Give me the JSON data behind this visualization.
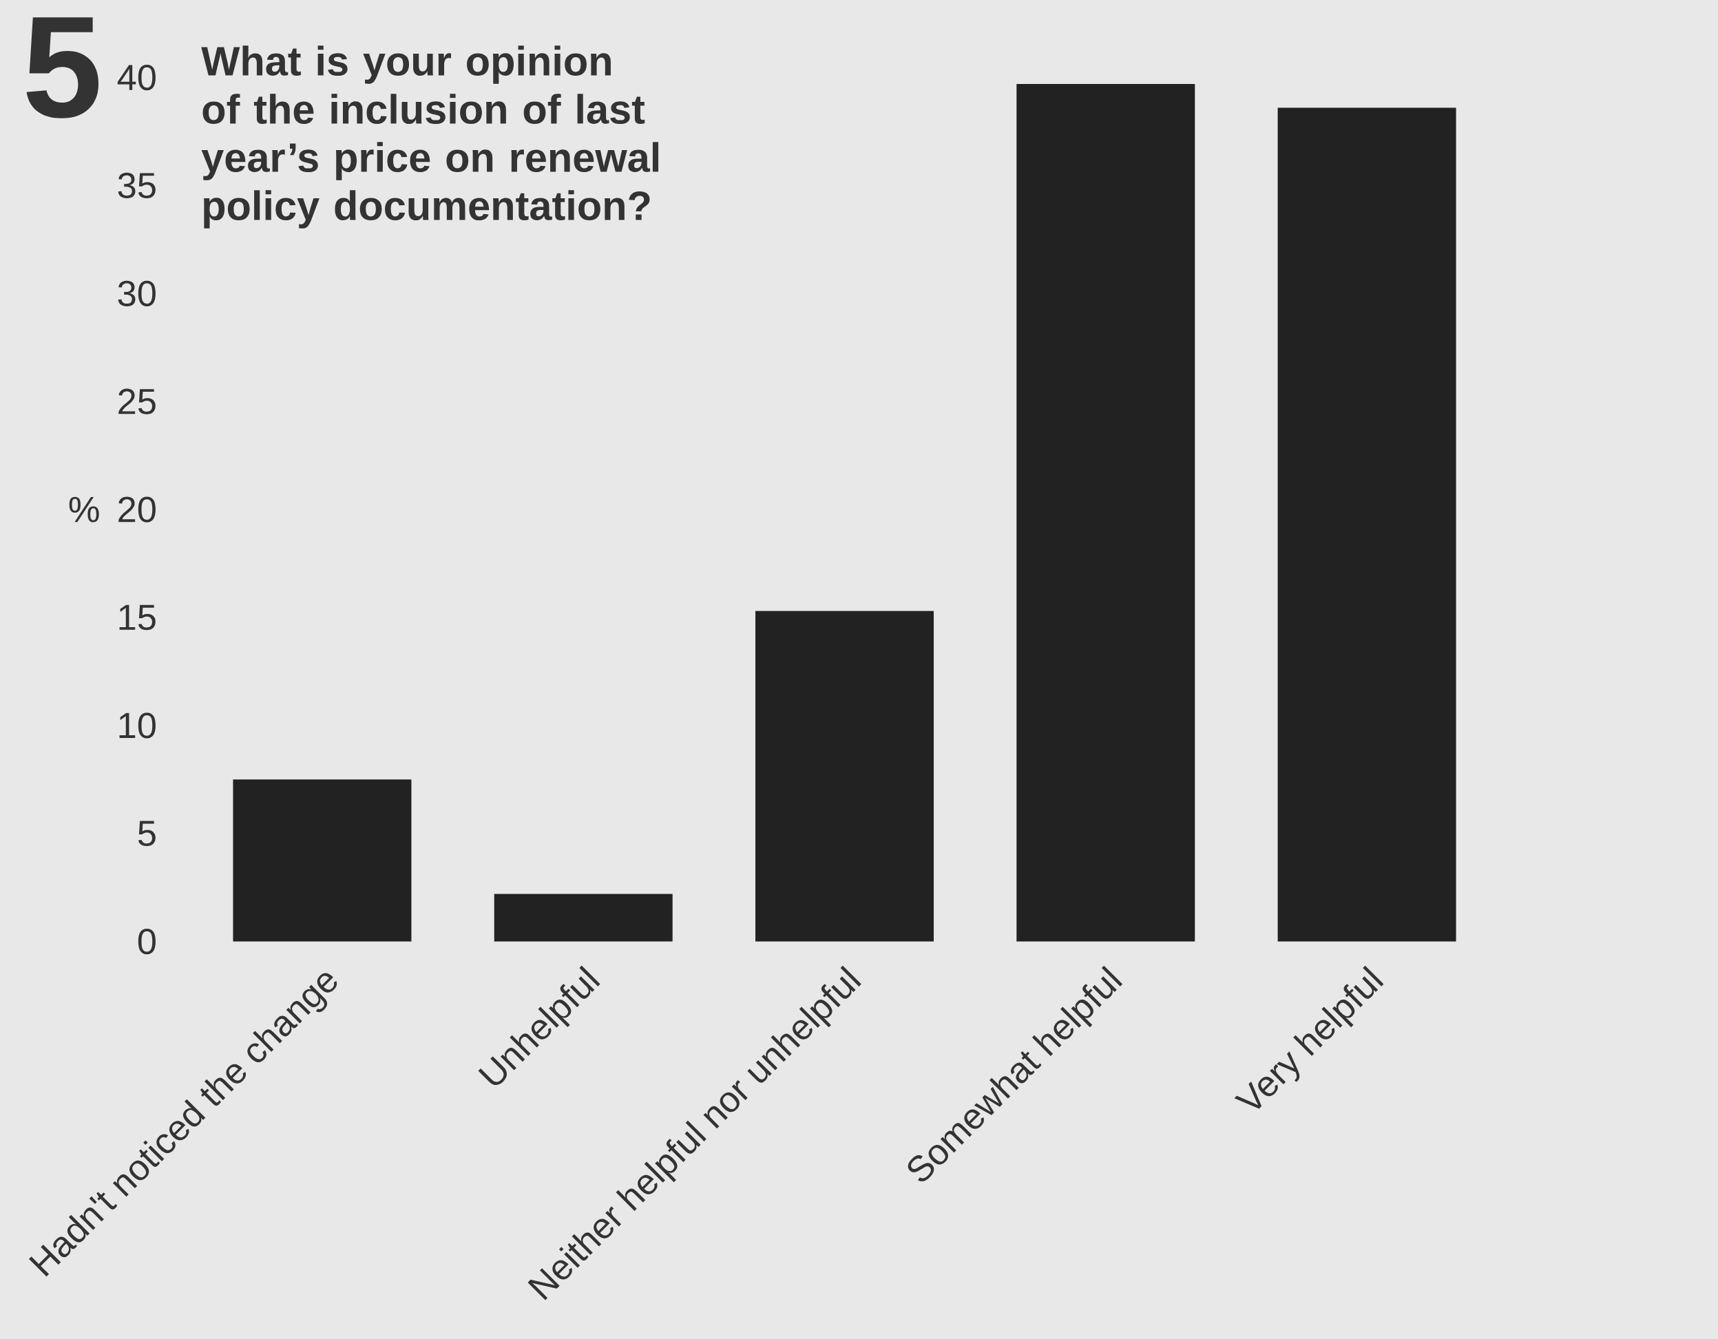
{
  "chart_data": {
    "type": "bar",
    "title": "What is your opinion of the inclusion of last year’s price on renewal policy documentation?",
    "ylabel": "%",
    "annotations": [
      "5"
    ],
    "categories": [
      "Hadn't noticed the change",
      "Unhelpful",
      "Neither helpful nor unhelpful",
      "Somewhat helpful",
      "Very helpful"
    ],
    "values": [
      7.5,
      2.2,
      15.3,
      39.7,
      38.6
    ],
    "color": "#222222",
    "ylim": [
      0,
      40
    ],
    "yticks": [
      0,
      5,
      10,
      15,
      20,
      25,
      30,
      35,
      40
    ]
  }
}
